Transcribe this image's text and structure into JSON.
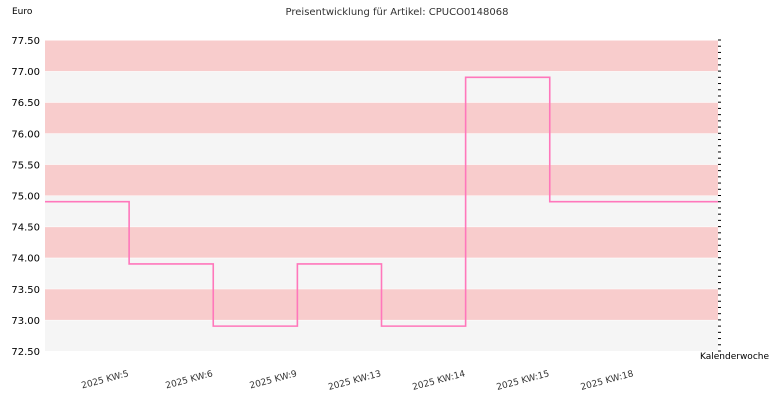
{
  "chart_data": {
    "type": "line",
    "step": true,
    "title": "Preisentwicklung für Artikel: CPUCO0148068",
    "ylabel": "Euro",
    "xlabel": "Kalenderwoche",
    "ylim": [
      72.5,
      77.5
    ],
    "ytick_step": 0.5,
    "yticks": [
      "72.50",
      "73.00",
      "73.50",
      "74.00",
      "74.50",
      "75.00",
      "75.50",
      "76.00",
      "76.50",
      "77.00",
      "77.50"
    ],
    "categories": [
      "2025 KW:5",
      "2025 KW:6",
      "2025 KW:9",
      "2025 KW:13",
      "2025 KW:14",
      "2025 KW:15",
      "2025 KW:18"
    ],
    "series": [
      {
        "values": [
          74.9,
          73.9,
          72.9,
          73.9,
          72.9,
          76.9,
          74.9
        ]
      }
    ],
    "grid": "horizontal alternating bands",
    "legend": "none",
    "colors": {
      "line": "#ff77bb",
      "band_light": "#f5f5f5",
      "band_dark": "#f8cccc"
    }
  }
}
